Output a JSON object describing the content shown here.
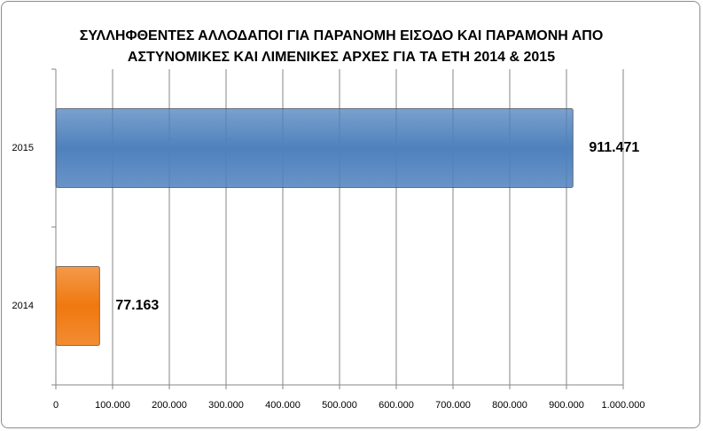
{
  "chart_data": {
    "type": "hbar",
    "title": "ΣΥΛΛΗΦΘΕΝΤΕΣ ΑΛΛΟΔΑΠΟΙ ΓΙΑ ΠΑΡΑΝΟΜΗ ΕΙΣΟΔΟ ΚΑΙ ΠΑΡΑΜΟΝΗ ΑΠΟ ΑΣΤΥΝΟΜΙΚΕΣ ΚΑΙ ΛΙΜΕΝΙΚΕΣ ΑΡΧΕΣ ΓΙΑ ΤΑ ΕΤΗ 2014 & 2015",
    "categories": [
      "2015",
      "2014"
    ],
    "values": [
      911471,
      77163
    ],
    "value_labels": [
      "911.471",
      "77.163"
    ],
    "colors": [
      "#4f81bd",
      "#f0780f"
    ],
    "xlim": [
      0,
      1000000
    ],
    "xticks": [
      0,
      {
        "value": 100000,
        "label": "100.000"
      },
      {
        "value": 200000,
        "label": "200.000"
      },
      {
        "value": 300000,
        "label": "300.000"
      },
      {
        "value": 400000,
        "label": "400.000"
      },
      {
        "value": 500000,
        "label": "500.000"
      },
      {
        "value": 600000,
        "label": "600.000"
      },
      {
        "value": 700000,
        "label": "700.000"
      },
      {
        "value": 800000,
        "label": "800.000"
      },
      {
        "value": 900000,
        "label": "900.000"
      },
      {
        "value": 1000000,
        "label": "1.000.000"
      }
    ],
    "grid": true
  }
}
